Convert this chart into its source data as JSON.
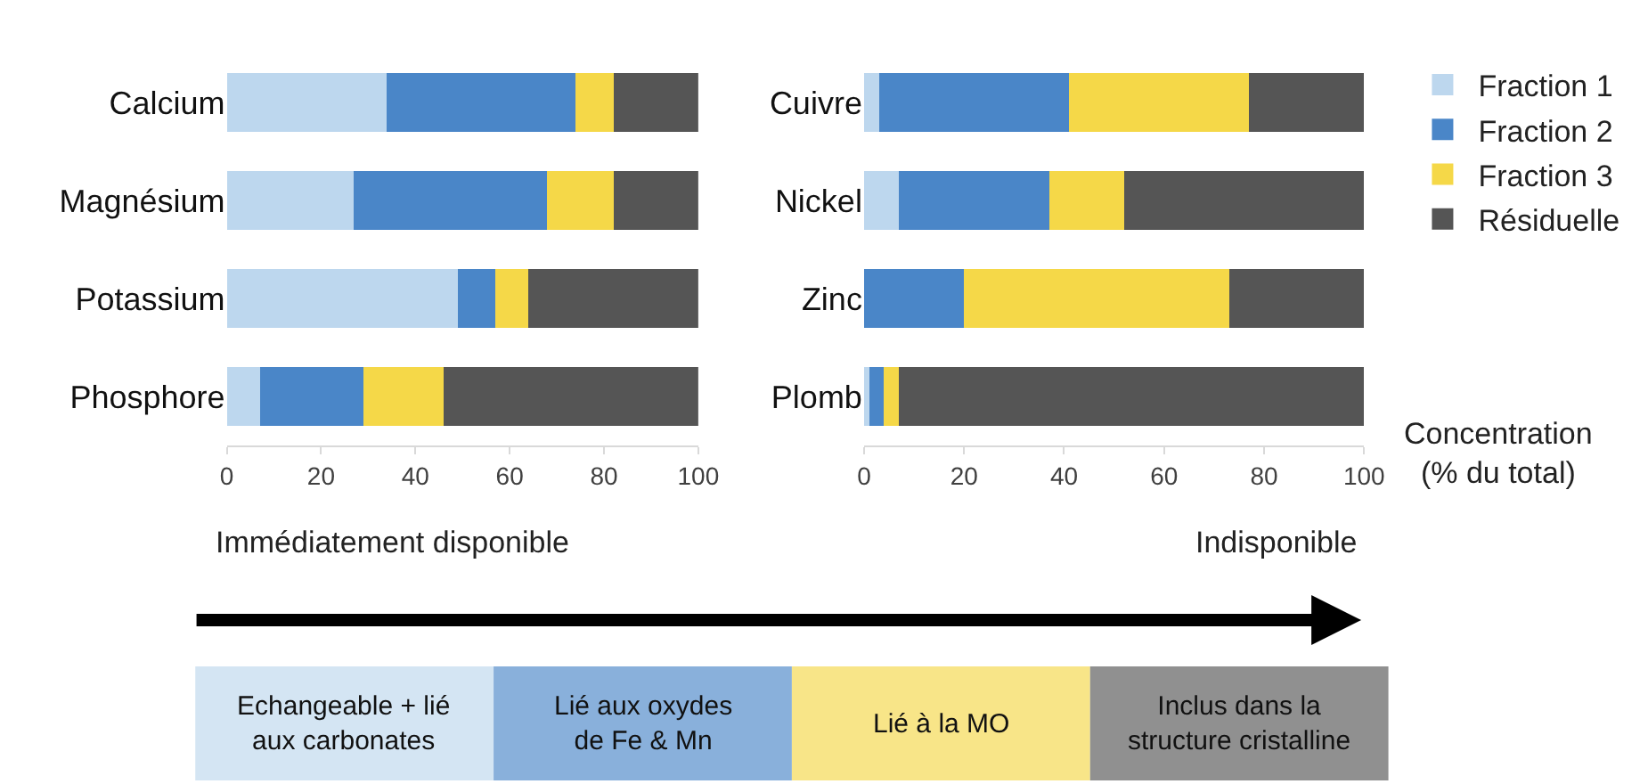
{
  "chart_data": [
    {
      "type": "bar",
      "orientation": "horizontal",
      "stacked": true,
      "categories": [
        "Calcium",
        "Magnésium",
        "Potassium",
        "Phosphore"
      ],
      "xlim": [
        0,
        100
      ],
      "xticks": [
        0,
        20,
        40,
        60,
        80,
        100
      ],
      "legend": "right",
      "series": [
        {
          "name": "Fraction 1",
          "color": "#bdd7ee",
          "values": [
            34,
            27,
            49,
            7
          ]
        },
        {
          "name": "Fraction 2",
          "color": "#4a86c8",
          "values": [
            40,
            41,
            8,
            22
          ]
        },
        {
          "name": "Fraction 3",
          "color": "#f5d848",
          "values": [
            8,
            14,
            7,
            17
          ]
        },
        {
          "name": "Résiduelle",
          "color": "#555555",
          "values": [
            18,
            18,
            36,
            54
          ]
        }
      ],
      "annotations": [
        "Immédiatement disponible",
        "Indisponible",
        "Echangeable + lié aux carbonates",
        "Lié aux oxydes de Fe & Mn",
        "Lié à la MO",
        "Inclus dans la structure cristalline"
      ]
    },
    {
      "type": "bar",
      "orientation": "horizontal",
      "stacked": true,
      "categories": [
        "Cuivre",
        "Nickel",
        "Zinc",
        "Plomb"
      ],
      "xlim": [
        0,
        100
      ],
      "xticks": [
        0,
        20,
        40,
        60,
        80,
        100
      ],
      "legend": "right",
      "xlabel": "Concentration (% du total)",
      "series": [
        {
          "name": "Fraction 1",
          "color": "#bdd7ee",
          "values": [
            3,
            7,
            0,
            1
          ]
        },
        {
          "name": "Fraction 2",
          "color": "#4a86c8",
          "values": [
            38,
            30,
            20,
            3
          ]
        },
        {
          "name": "Fraction 3",
          "color": "#f5d848",
          "values": [
            36,
            15,
            53,
            3
          ]
        },
        {
          "name": "Résiduelle",
          "color": "#555555",
          "values": [
            23,
            48,
            27,
            93
          ]
        }
      ]
    }
  ]
}
